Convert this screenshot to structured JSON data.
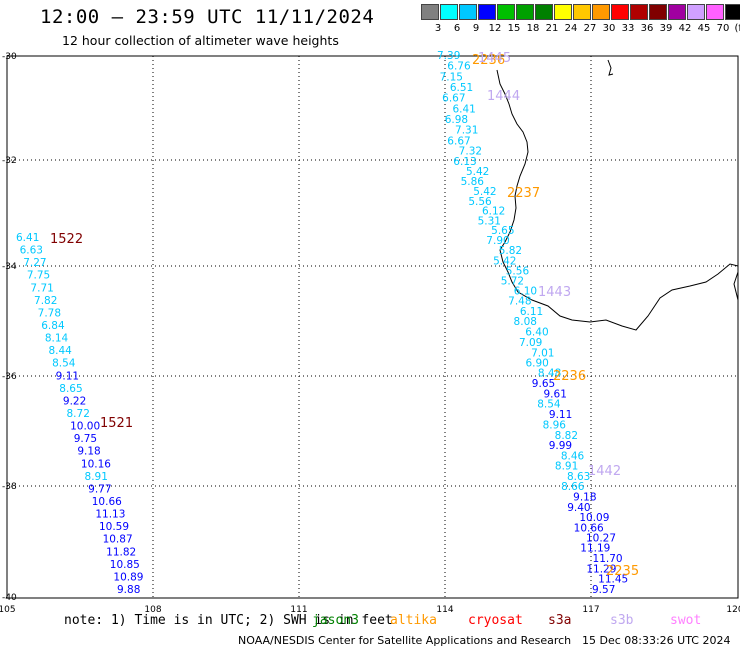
{
  "header": {
    "title": "12:00 — 23:59 UTC 11/11/2024",
    "subtitle": "12 hour collection of altimeter wave heights"
  },
  "legend": {
    "labels": [
      "3",
      "6",
      "9",
      "12",
      "15",
      "18",
      "21",
      "24",
      "27",
      "30",
      "33",
      "36",
      "39",
      "42",
      "45",
      "70",
      "(ft)"
    ],
    "colors": [
      "#808080",
      "#00ffff",
      "#00c8ff",
      "#0000ff",
      "#00c000",
      "#00a000",
      "#008000",
      "#ffff00",
      "#ffc800",
      "#ff9900",
      "#ff0000",
      "#b00000",
      "#800000",
      "#a000a0",
      "#d0a0ff",
      "#ff60ff",
      "#000000"
    ]
  },
  "axes": {
    "lon_ticks": [
      "105",
      "108",
      "111",
      "114",
      "117",
      "120"
    ],
    "lat_ticks": [
      "-30",
      "-32",
      "-34",
      "-36",
      "-38",
      "-40"
    ]
  },
  "tracks": [
    {
      "id": "west",
      "time_labels": [
        {
          "text": "1522",
          "color": "#800000"
        },
        {
          "text": "1521",
          "color": "#800000"
        }
      ],
      "swh": [
        "6.41",
        "6.63",
        "7.27",
        "7.75",
        "7.71",
        "7.82",
        "7.78",
        "6.84",
        "8.14",
        "8.44",
        "8.54",
        "9.11",
        "8.65",
        "9.22",
        "8.72",
        "10.00",
        "9.75",
        "9.18",
        "10.16",
        "8.91",
        "9.77",
        "10.66",
        "11.13",
        "10.59",
        "10.87",
        "11.82",
        "10.85",
        "10.89",
        "9.88"
      ]
    },
    {
      "id": "east",
      "time_labels": [
        {
          "text": "2236",
          "color": "#ff9900"
        },
        {
          "text": "2237",
          "color": "#ff9900"
        },
        {
          "text": "2236",
          "color": "#ff9900"
        },
        {
          "text": "2235",
          "color": "#ff9900"
        },
        {
          "text": "1445",
          "color": "#c0a8f0"
        },
        {
          "text": "1444",
          "color": "#c0a8f0"
        },
        {
          "text": "1443",
          "color": "#c0a8f0"
        },
        {
          "text": "1442",
          "color": "#c0a8f0"
        }
      ],
      "swh": [
        "7.39",
        "6.76",
        "7.15",
        "6.51",
        "6.67",
        "6.41",
        "6.98",
        "7.31",
        "6.67",
        "7.32",
        "6.13",
        "5.42",
        "5.86",
        "5.42",
        "5.56",
        "6.12",
        "5.31",
        "5.65",
        "7.90",
        "5.82",
        "5.42",
        "5.56",
        "5.72",
        "6.10",
        "7.48",
        "6.11",
        "8.08",
        "6.40",
        "7.09",
        "7.01",
        "6.90",
        "8.48",
        "9.65",
        "9.61",
        "8.54",
        "9.11",
        "8.96",
        "8.82",
        "9.99",
        "8.46",
        "8.91",
        "8.63",
        "8.66",
        "9.18",
        "9.40",
        "10.09",
        "10.66",
        "10.27",
        "11.19",
        "11.70",
        "11.29",
        "11.45",
        "9.57"
      ]
    }
  ],
  "footer": {
    "note": "note: 1) Time is in UTC; 2) SWH is in feet",
    "satellites": [
      {
        "name": "jason3",
        "color": "#008000"
      },
      {
        "name": "altika",
        "color": "#ff9900"
      },
      {
        "name": "cryosat",
        "color": "#ff0000"
      },
      {
        "name": "s3a",
        "color": "#800000"
      },
      {
        "name": "s3b",
        "color": "#c0a8f0"
      },
      {
        "name": "swot",
        "color": "#ff80ff"
      }
    ],
    "credit": "NOAA/NESDIS Center for Satellite Applications and Research",
    "timestamp": "15 Dec 08:33:26 UTC 2024"
  }
}
